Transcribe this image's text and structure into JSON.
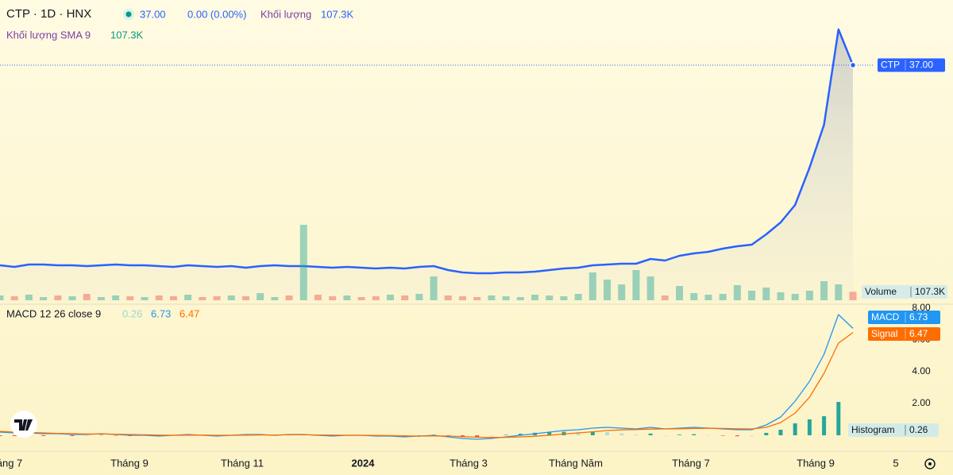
{
  "chart_data": [
    {
      "type": "line",
      "title": "CTP · 1D · HNX",
      "last_price": "37.00",
      "change": "0.00 (0.00%)",
      "ylim": [
        7.2,
        45.2
      ],
      "y2lim": [
        0,
        3780000
      ],
      "x_labels": [
        "áng 7",
        "Tháng 9",
        "Tháng 11",
        "2024",
        "Tháng 3",
        "Tháng Năm",
        "Tháng 7",
        "Tháng 9",
        "5"
      ],
      "series": [
        {
          "name": "CTP",
          "color": "#2962ff",
          "last_label": "37.00",
          "values": [
            11.8,
            11.6,
            11.9,
            11.9,
            11.8,
            11.8,
            11.7,
            11.8,
            11.9,
            11.8,
            11.8,
            11.7,
            11.6,
            11.8,
            11.7,
            11.6,
            11.7,
            11.5,
            11.7,
            11.8,
            11.7,
            11.7,
            11.6,
            11.5,
            11.6,
            11.5,
            11.4,
            11.5,
            11.4,
            11.6,
            11.7,
            11.2,
            10.9,
            10.8,
            10.8,
            10.9,
            10.9,
            11.0,
            11.2,
            11.4,
            11.5,
            11.8,
            11.9,
            12.0,
            12.0,
            12.6,
            12.4,
            13.0,
            13.3,
            13.5,
            13.9,
            14.2,
            14.4,
            15.7,
            17.2,
            19.4,
            24.1,
            29.5,
            41.5,
            37.0
          ]
        },
        {
          "name": "Khối lượng",
          "type": "bar",
          "axis": "y2",
          "up_color": "#26a69a",
          "down_color": "#ef5350",
          "last_label": "107.3K",
          "values": [
            60000,
            50000,
            70000,
            40000,
            60000,
            50000,
            80000,
            40000,
            60000,
            50000,
            40000,
            60000,
            50000,
            70000,
            40000,
            50000,
            60000,
            50000,
            90000,
            40000,
            60000,
            950000,
            70000,
            50000,
            60000,
            40000,
            50000,
            70000,
            60000,
            80000,
            300000,
            60000,
            50000,
            40000,
            60000,
            50000,
            40000,
            70000,
            60000,
            50000,
            80000,
            350000,
            260000,
            200000,
            380000,
            300000,
            60000,
            180000,
            90000,
            70000,
            80000,
            190000,
            120000,
            160000,
            100000,
            80000,
            120000,
            240000,
            200000,
            107300
          ]
        }
      ],
      "volume_sma": {
        "name": "Khối lượng SMA 9",
        "label": "107.3K"
      },
      "volume_axis_label": "Volume"
    },
    {
      "type": "line",
      "title": "MACD 12 26 close 9",
      "ylim": [
        -0.85,
        8.25
      ],
      "yticks": [
        {
          "value": 2,
          "label": "2.00"
        },
        {
          "value": 4,
          "label": "4.00"
        },
        {
          "value": 6,
          "label": "6.00"
        },
        {
          "value": 8,
          "label": "8.00"
        }
      ],
      "series": [
        {
          "name": "Histogram",
          "type": "bar",
          "color": "#26a69a",
          "last_label": "0.26",
          "values": [
            -0.05,
            -0.05,
            -0.03,
            -0.05,
            -0.02,
            -0.05,
            -0.03,
            0.02,
            -0.02,
            -0.05,
            -0.03,
            -0.06,
            0.0,
            0.04,
            -0.01,
            -0.05,
            0.0,
            0.04,
            0.03,
            -0.02,
            0.02,
            0.02,
            -0.02,
            -0.06,
            0.0,
            0.0,
            -0.04,
            -0.03,
            -0.06,
            0.0,
            0.04,
            -0.05,
            -0.12,
            -0.13,
            -0.06,
            0.03,
            0.1,
            0.16,
            0.2,
            0.22,
            0.2,
            0.23,
            0.2,
            0.11,
            0.04,
            0.11,
            0.0,
            0.04,
            0.07,
            0.01,
            -0.03,
            -0.06,
            -0.05,
            0.15,
            0.35,
            0.75,
            1.0,
            1.2,
            2.1,
            0.26
          ]
        },
        {
          "name": "MACD",
          "color": "#2196f3",
          "last_label": "6.73",
          "values": [
            0.2,
            0.15,
            0.15,
            0.1,
            0.1,
            0.05,
            0.05,
            0.1,
            0.05,
            0.0,
            0.0,
            -0.05,
            0.0,
            0.05,
            0.0,
            -0.05,
            0.0,
            0.05,
            0.05,
            0.0,
            0.05,
            0.05,
            0.0,
            -0.05,
            0.0,
            0.0,
            -0.05,
            -0.05,
            -0.1,
            -0.05,
            0.0,
            -0.1,
            -0.2,
            -0.25,
            -0.2,
            -0.1,
            0.0,
            0.1,
            0.2,
            0.3,
            0.35,
            0.45,
            0.5,
            0.45,
            0.4,
            0.5,
            0.4,
            0.45,
            0.5,
            0.45,
            0.4,
            0.35,
            0.35,
            0.65,
            1.15,
            2.15,
            3.4,
            5.1,
            7.6,
            6.73
          ]
        },
        {
          "name": "Signal",
          "color": "#ff6d00",
          "last_label": "6.47",
          "values": [
            0.25,
            0.2,
            0.18,
            0.15,
            0.12,
            0.1,
            0.08,
            0.08,
            0.07,
            0.05,
            0.03,
            0.01,
            0.0,
            0.01,
            0.01,
            0.0,
            0.0,
            0.01,
            0.02,
            0.02,
            0.03,
            0.03,
            0.02,
            0.01,
            0.0,
            0.0,
            -0.01,
            -0.02,
            -0.04,
            -0.05,
            -0.04,
            -0.05,
            -0.08,
            -0.12,
            -0.14,
            -0.13,
            -0.1,
            -0.06,
            0.0,
            0.08,
            0.15,
            0.22,
            0.3,
            0.34,
            0.36,
            0.39,
            0.4,
            0.41,
            0.43,
            0.44,
            0.43,
            0.41,
            0.4,
            0.5,
            0.8,
            1.4,
            2.4,
            3.9,
            5.8,
            6.47
          ]
        }
      ]
    }
  ]
}
